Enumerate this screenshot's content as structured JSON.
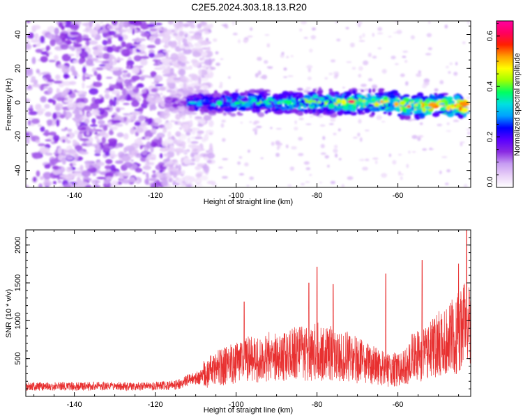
{
  "title": "C2E5.2024.303.18.13.R20",
  "chart_data": [
    {
      "type": "heatmap",
      "name": "spectrogram",
      "title": "C2E5.2024.303.18.13.R20",
      "xlabel": "Height of straight line (km)",
      "ylabel": "Frequency (Hz)",
      "xlim": [
        -152,
        -42
      ],
      "ylim": [
        -50,
        48
      ],
      "x_ticks": [
        -140,
        -120,
        -100,
        -80,
        -60
      ],
      "x_tick_labels": [
        "-140",
        "-120",
        "-100",
        "-80",
        "-60"
      ],
      "y_ticks": [
        -40,
        -20,
        0,
        20,
        40
      ],
      "y_tick_labels": [
        "-40",
        "-20",
        "0",
        "20",
        "40"
      ],
      "regions": [
        {
          "description": "broadband noise",
          "x_range": [
            -152,
            -106
          ],
          "freq_range": [
            -50,
            48
          ],
          "amplitude": 0.12
        },
        {
          "description": "narrowband signal around 0 Hz",
          "x_range": [
            -117,
            -43
          ],
          "freq_range": [
            -10,
            8
          ],
          "amplitude_peak": 0.62
        }
      ],
      "colorbar": {
        "label": "Normalized spectral amplitude",
        "range": [
          0.0,
          0.66
        ],
        "ticks": [
          0.0,
          0.2,
          0.4,
          0.6
        ],
        "tick_labels": [
          "0.0",
          "0.2",
          "0.4",
          "0.6"
        ],
        "colors": [
          "#ffffff",
          "#e8d0f8",
          "#c79cf2",
          "#8a2be2",
          "#5a00ff",
          "#0000ff",
          "#00a0ff",
          "#00e0e0",
          "#00ff60",
          "#a0ff00",
          "#ffff00",
          "#ffa000",
          "#ff2000",
          "#ff0060",
          "#ff00a0"
        ]
      }
    },
    {
      "type": "line",
      "name": "snr",
      "xlabel": "Height of straight line (km)",
      "ylabel": "SNR (10 * v/v)",
      "xlim": [
        -152,
        -42
      ],
      "ylim": [
        0,
        2200
      ],
      "x_ticks": [
        -140,
        -120,
        -100,
        -80,
        -60
      ],
      "x_tick_labels": [
        "-140",
        "-120",
        "-100",
        "-80",
        "-60"
      ],
      "y_ticks": [
        500,
        1000,
        1500,
        2000
      ],
      "y_tick_labels": [
        "500",
        "1000",
        "1500",
        "2000"
      ],
      "series": [
        {
          "name": "SNR",
          "color": "#e83030",
          "x": [
            -152,
            -145,
            -140,
            -135,
            -130,
            -125,
            -120,
            -115,
            -112,
            -108,
            -105,
            -102,
            -100,
            -98,
            -96,
            -94,
            -92,
            -90,
            -88,
            -86,
            -84,
            -82,
            -80,
            -78,
            -76,
            -74,
            -72,
            -70,
            -68,
            -66,
            -64,
            -62,
            -60,
            -58,
            -56,
            -54,
            -52,
            -50,
            -48,
            -46,
            -44,
            -43
          ],
          "y": [
            170,
            175,
            170,
            175,
            180,
            170,
            180,
            190,
            250,
            300,
            380,
            420,
            450,
            520,
            500,
            480,
            560,
            520,
            540,
            580,
            600,
            560,
            620,
            560,
            600,
            520,
            560,
            480,
            460,
            420,
            380,
            350,
            380,
            420,
            560,
            540,
            620,
            700,
            760,
            820,
            900,
            1000
          ],
          "peaks": [
            {
              "x": -98,
              "y": 1250
            },
            {
              "x": -82,
              "y": 1500
            },
            {
              "x": -80,
              "y": 1710
            },
            {
              "x": -76,
              "y": 1480
            },
            {
              "x": -63,
              "y": 1620
            },
            {
              "x": -54,
              "y": 1800
            },
            {
              "x": -45,
              "y": 1750
            },
            {
              "x": -43,
              "y": 2200
            }
          ]
        }
      ]
    }
  ]
}
